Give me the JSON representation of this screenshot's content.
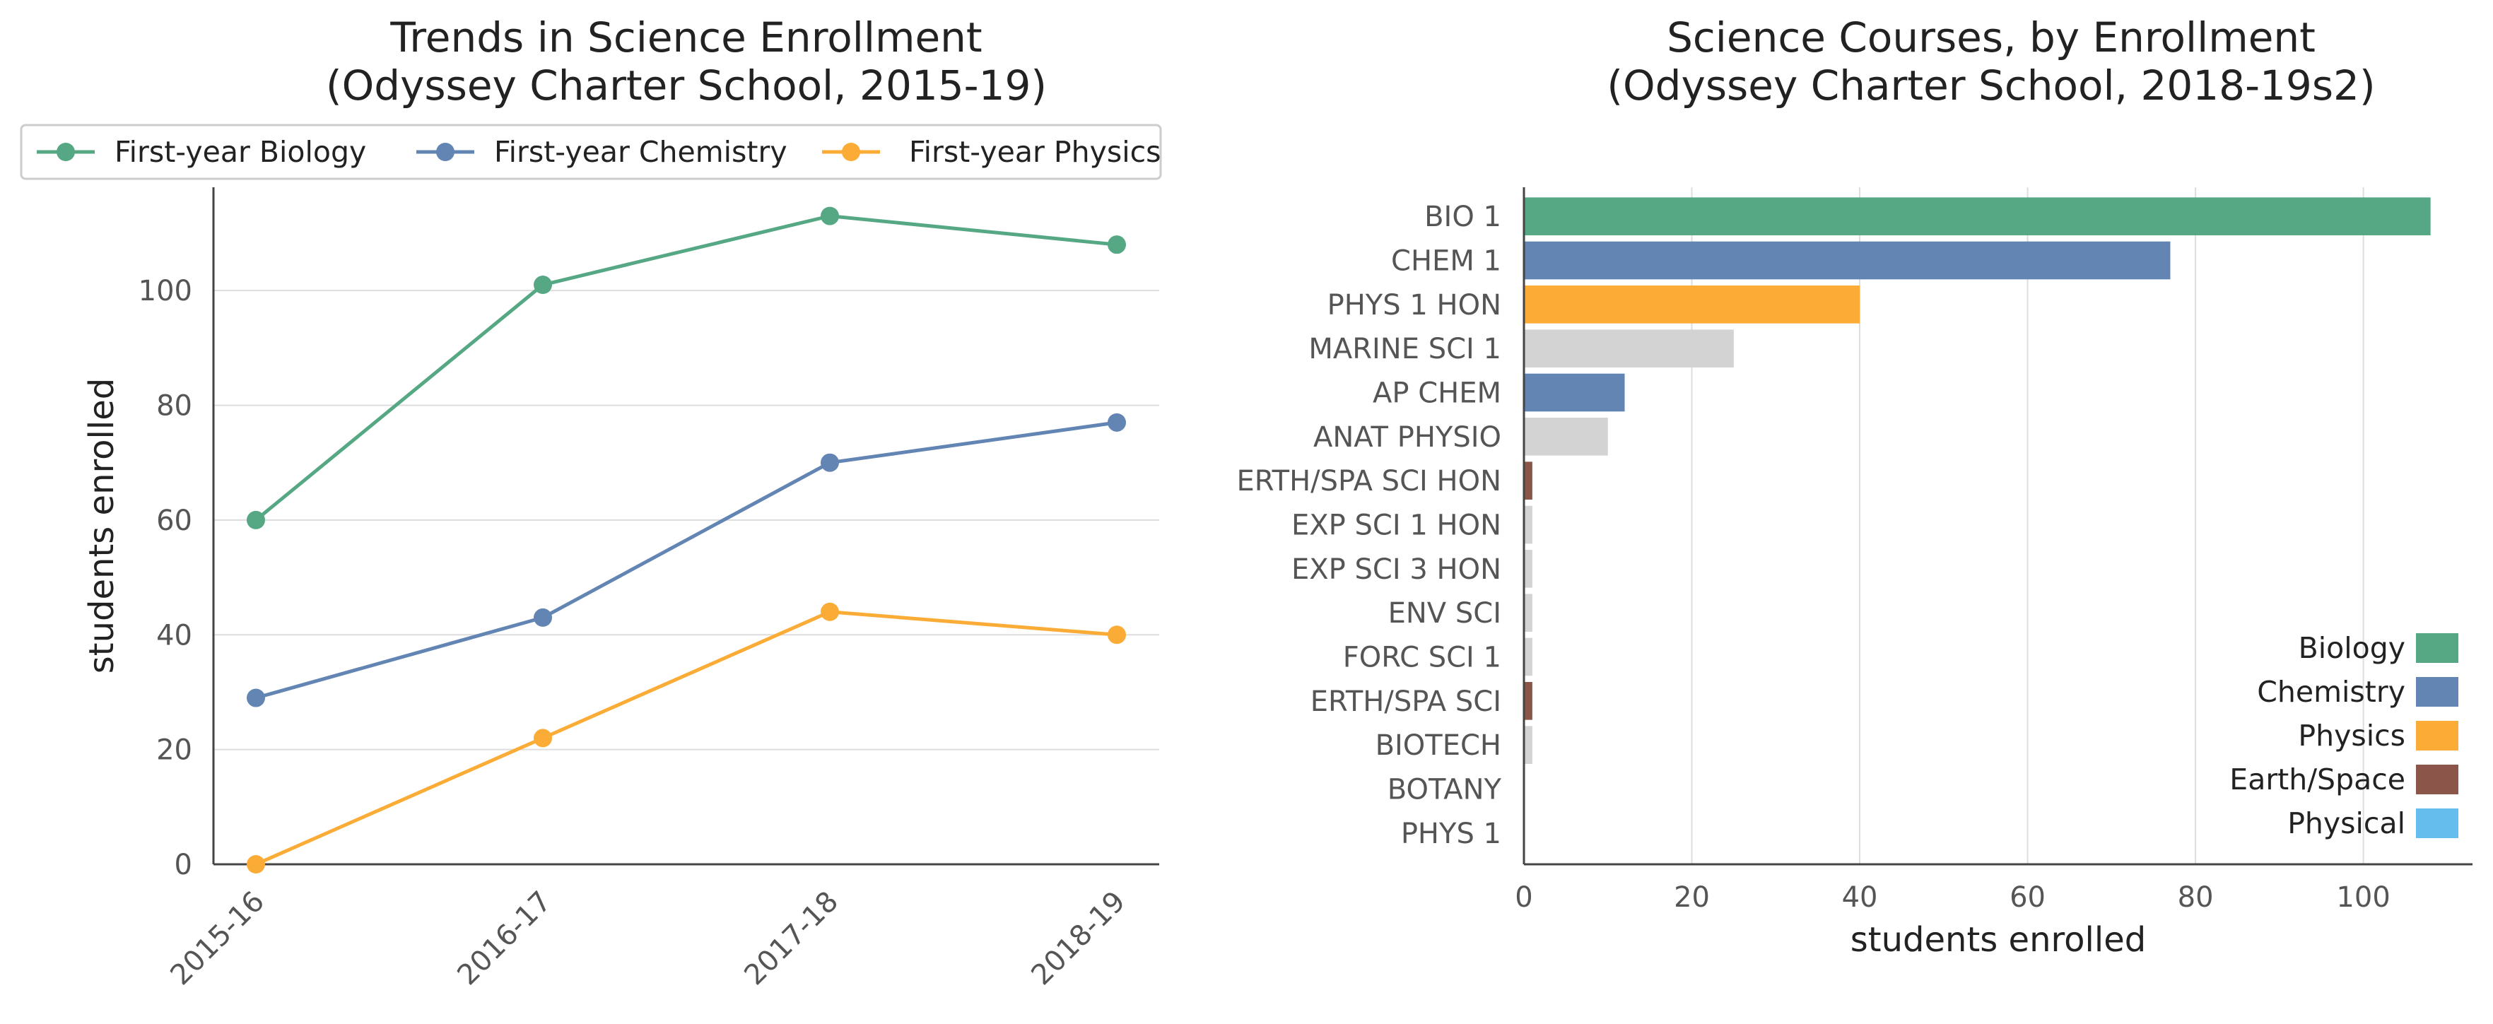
{
  "chart_data": [
    {
      "type": "line",
      "title": [
        "Trends in Science Enrollment",
        "(Odyssey Charter School, 2015-19)"
      ],
      "xlabel": "",
      "ylabel": "students enrolled",
      "categories": [
        "2015-16",
        "2016-17",
        "2017-18",
        "2018-19"
      ],
      "ylim": [
        0,
        118
      ],
      "yticks": [
        0,
        20,
        40,
        60,
        80,
        100
      ],
      "grid": "horizontal",
      "legend": "top",
      "series": [
        {
          "name": "First-year Biology",
          "color": "#55a883",
          "values": [
            60,
            101,
            113,
            108
          ]
        },
        {
          "name": "First-year Chemistry",
          "color": "#6285b4",
          "values": [
            29,
            43,
            70,
            77
          ]
        },
        {
          "name": "First-year Physics",
          "color": "#fbac36",
          "values": [
            0,
            22,
            44,
            40
          ]
        }
      ]
    },
    {
      "type": "bar",
      "orientation": "horizontal",
      "title": [
        "Science Courses, by Enrollment",
        "(Odyssey Charter School, 2018-19s2)"
      ],
      "xlabel": "students enrolled",
      "ylabel": "",
      "xlim": [
        0,
        113
      ],
      "xticks": [
        0,
        20,
        40,
        60,
        80,
        100
      ],
      "grid": "vertical",
      "legend": "lower-right",
      "categories": [
        "BIO 1",
        "CHEM 1",
        "PHYS 1 HON",
        "MARINE SCI 1",
        "AP CHEM",
        "ANAT PHYSIO",
        "ERTH/SPA SCI HON",
        "EXP SCI 1 HON",
        "EXP SCI 3 HON",
        "ENV SCI",
        "FORC SCI 1",
        "ERTH/SPA SCI",
        "BIOTECH",
        "BOTANY",
        "PHYS 1"
      ],
      "values": [
        108,
        77,
        40,
        25,
        12,
        10,
        1,
        1,
        1,
        1,
        1,
        1,
        1,
        0,
        0
      ],
      "bar_group": [
        "Biology",
        "Chemistry",
        "Physics",
        "Other",
        "Chemistry",
        "Other",
        "Earth/Space",
        "Other",
        "Other",
        "Other",
        "Other",
        "Earth/Space",
        "Other",
        "Other",
        "Physical"
      ],
      "group_colors": {
        "Biology": "#55a883",
        "Chemistry": "#6285b4",
        "Physics": "#fbac36",
        "Earth/Space": "#8b5549",
        "Physical": "#64bdec",
        "Other": "#d3d3d3"
      },
      "legend_items": [
        "Biology",
        "Chemistry",
        "Physics",
        "Earth/Space",
        "Physical"
      ]
    }
  ]
}
